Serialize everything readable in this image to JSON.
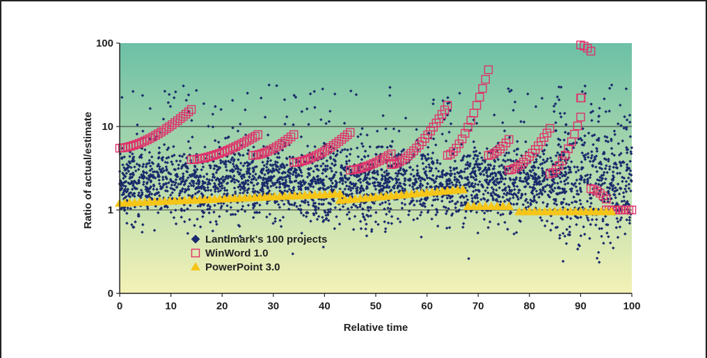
{
  "chart_data": {
    "type": "scatter",
    "title": "",
    "xlabel": "Relative time",
    "ylabel": "Ratio of actual/estimate",
    "xlim": [
      0,
      100
    ],
    "ylim_log": [
      0.1,
      100
    ],
    "y_scale": "log",
    "x_ticks": [
      "0",
      "10",
      "20",
      "30",
      "40",
      "50",
      "60",
      "70",
      "80",
      "90",
      "100"
    ],
    "y_ticks": [
      {
        "value": 100,
        "label": "100"
      },
      {
        "value": 10,
        "label": "10"
      },
      {
        "value": 1,
        "label": "1"
      },
      {
        "value": 0.1,
        "label": "0"
      }
    ],
    "gridlines_y": [
      10,
      1
    ],
    "background_gradient": [
      "#6cc0a6",
      "#f4f2b6"
    ],
    "legend_placement": "lower-left",
    "series": [
      {
        "name": "Landmark's 100 projects",
        "marker": "diamond",
        "color": "#1a2a6c",
        "trend_note": "dense cloud of ~6000 points between about 0.3 and 8, with outliers up to ~90"
      },
      {
        "name": "WinWord 1.0",
        "marker": "open-square",
        "color": "#e0306a",
        "segments": [
          {
            "x": [
              0,
              14
            ],
            "y": [
              5.5,
              16
            ]
          },
          {
            "x": [
              14,
              27
            ],
            "y": [
              4.0,
              8.0
            ]
          },
          {
            "x": [
              26,
              34
            ],
            "y": [
              4.5,
              8.0
            ]
          },
          {
            "x": [
              34,
              45
            ],
            "y": [
              3.7,
              8.5
            ]
          },
          {
            "x": [
              45,
              53
            ],
            "y": [
              3.0,
              4.7
            ]
          },
          {
            "x": [
              53,
              64
            ],
            "y": [
              3.5,
              18
            ]
          },
          {
            "x": [
              64,
              72
            ],
            "y": [
              4.5,
              48
            ]
          },
          {
            "x": [
              72,
              76
            ],
            "y": [
              4.5,
              7
            ]
          },
          {
            "x": [
              76,
              84
            ],
            "y": [
              3.0,
              9.5
            ]
          },
          {
            "x": [
              84,
              90
            ],
            "y": [
              2.7,
              13
            ]
          },
          {
            "x": [
              90,
              90.1
            ],
            "y": [
              22,
              22
            ]
          },
          {
            "x": [
              90,
              92
            ],
            "y": [
              95,
              80
            ]
          },
          {
            "x": [
              92,
              95
            ],
            "y": [
              1.8,
              1.35
            ]
          },
          {
            "x": [
              95,
              100
            ],
            "y": [
              1.0,
              1.0
            ]
          }
        ]
      },
      {
        "name": "PowerPoint 3.0",
        "marker": "triangle",
        "color": "#f5c518",
        "segments": [
          {
            "x": [
              0,
              43
            ],
            "y": [
              1.2,
              1.55
            ]
          },
          {
            "x": [
              43,
              67
            ],
            "y": [
              1.3,
              1.75
            ]
          },
          {
            "x": [
              68,
              76
            ],
            "y": [
              1.1,
              1.1
            ]
          },
          {
            "x": [
              78,
              96
            ],
            "y": [
              0.95,
              0.95
            ]
          }
        ]
      }
    ]
  }
}
